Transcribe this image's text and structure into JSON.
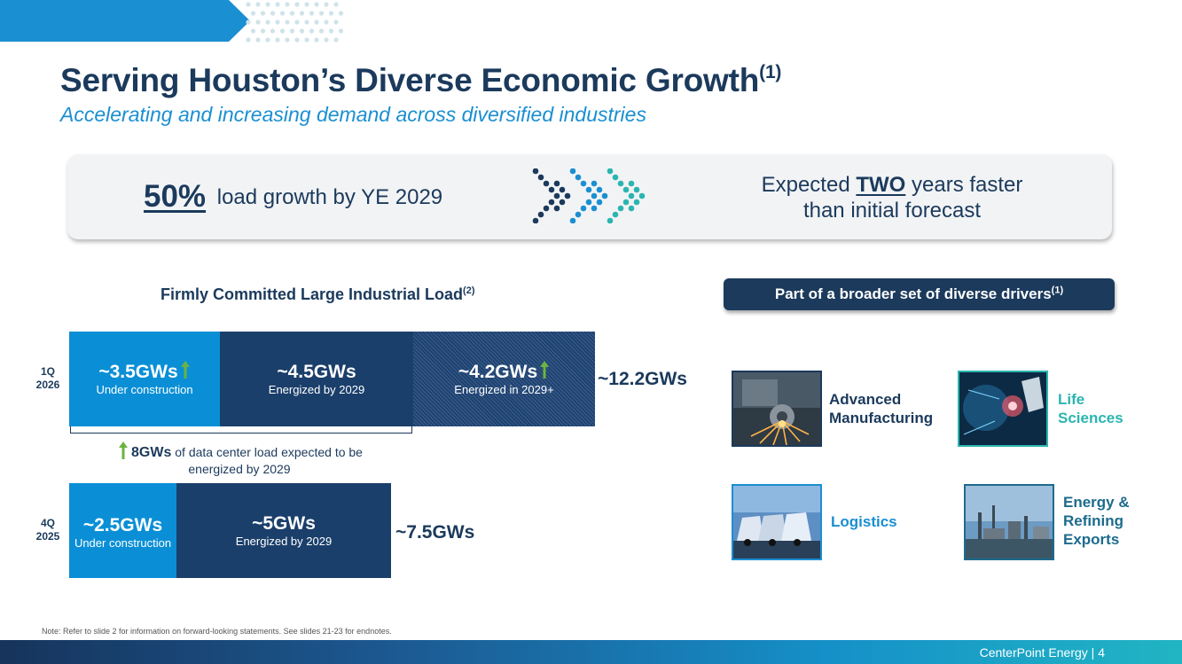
{
  "header": {
    "title": "Serving Houston’s Diverse Economic Growth",
    "title_note": "(1)",
    "subtitle": "Accelerating and increasing demand across diversified industries"
  },
  "callout": {
    "percent": "50%",
    "growth_text": "load growth by YE 2029",
    "right_pre": "Expected",
    "right_emphasis": "TWO",
    "right_post": "years faster",
    "right_line2": "than initial forecast"
  },
  "chart": {
    "title": "Firmly Committed Large Industrial Load",
    "title_note": "(2)",
    "dc_note_value": "8GWs",
    "dc_note_text": "of data center load expected to be energized by 2029"
  },
  "chart_data": {
    "type": "bar",
    "orientation": "horizontal",
    "stacked": true,
    "unit": "GWs",
    "categories": [
      "1Q 2026",
      "4Q 2025"
    ],
    "rows": [
      {
        "label_line1": "1Q",
        "label_line2": "2026",
        "total_label": "~12.2GWs",
        "total": 12.2,
        "segments": [
          {
            "value": 3.5,
            "value_label": "~3.5GWs",
            "status": "Under construction",
            "increase_arrow": true,
            "color": "#0a8fd6"
          },
          {
            "value": 4.5,
            "value_label": "~4.5GWs",
            "status": "Energized by 2029",
            "increase_arrow": false,
            "color": "#1b3f6b"
          },
          {
            "value": 4.2,
            "value_label": "~4.2GWs",
            "status": "Energized in 2029+",
            "increase_arrow": true,
            "color": "#1d4272"
          }
        ]
      },
      {
        "label_line1": "4Q",
        "label_line2": "2025",
        "total_label": "~7.5GWs",
        "total": 7.5,
        "segments": [
          {
            "value": 2.5,
            "value_label": "~2.5GWs",
            "status": "Under construction",
            "increase_arrow": false,
            "color": "#0a8fd6"
          },
          {
            "value": 5.0,
            "value_label": "~5GWs",
            "status": "Energized by 2029",
            "increase_arrow": false,
            "color": "#1b3f6b"
          }
        ]
      }
    ]
  },
  "drivers": {
    "title": "Part of a broader set of diverse drivers",
    "title_note": "(1)",
    "items": [
      {
        "line1": "Advanced",
        "line2": "Manufacturing",
        "line3": "",
        "icon": "manufacturing-photo",
        "color": "#1b3a5c"
      },
      {
        "line1": "Life",
        "line2": "Sciences",
        "line3": "",
        "icon": "life-sciences-photo",
        "color": "#2bb5b0"
      },
      {
        "line1": "Logistics",
        "line2": "",
        "line3": "",
        "icon": "logistics-photo",
        "color": "#1a8fd1"
      },
      {
        "line1": "Energy &",
        "line2": "Refining",
        "line3": "Exports",
        "icon": "refinery-photo",
        "color": "#1d6b8c"
      }
    ]
  },
  "footer": {
    "note": "Note: Refer to slide 2 for information on forward-looking statements. See slides 21-23 for endnotes.",
    "company_page": "CenterPoint Energy | 4"
  },
  "colors": {
    "navy": "#1b3a5c",
    "accent_blue": "#1a8fd1",
    "bar_light": "#0a8fd6",
    "bar_dark": "#1b3f6b",
    "arrow_green": "#6cb33f"
  }
}
